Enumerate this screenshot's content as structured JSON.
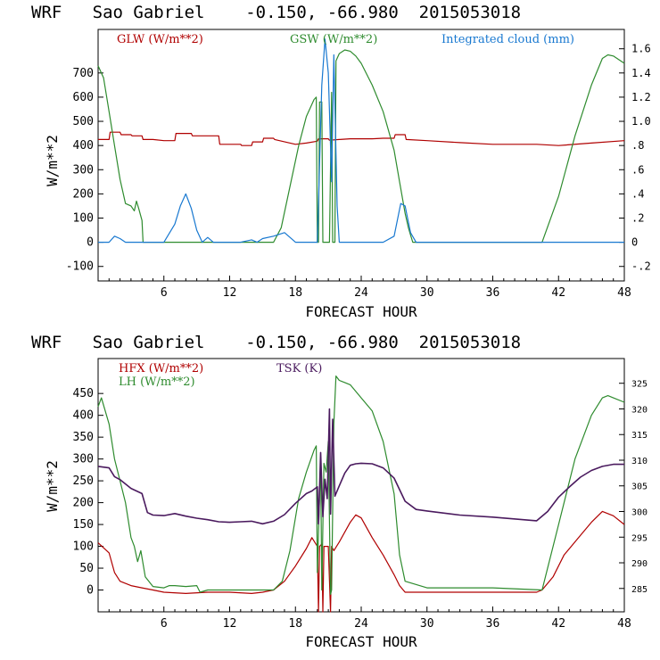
{
  "chart_data": [
    {
      "type": "line",
      "title": "WRF   Sao Gabriel    -0.150, -66.980  2015053018",
      "xlabel": "FORECAST HOUR",
      "ylabel": "W/m**2",
      "xlim": [
        0,
        48
      ],
      "ylim": [
        -160,
        880
      ],
      "y2lim": [
        -0.32,
        1.76
      ],
      "xticks": [
        6,
        12,
        18,
        24,
        30,
        36,
        42,
        48
      ],
      "yticks": [
        -100,
        0,
        100,
        200,
        300,
        400,
        500,
        600,
        700
      ],
      "y2ticks": [
        -0.2,
        0,
        0.2,
        0.4,
        0.6,
        0.8,
        1.0,
        1.2,
        1.4,
        1.6
      ],
      "y2tick_labels": [
        "-.2",
        "0",
        ".2",
        ".4",
        ".6",
        ".8",
        "1.0",
        "1.2",
        "1.4",
        "1.6"
      ],
      "series": [
        {
          "name": "GLW (W/m**2)",
          "color": "#b00000",
          "axis": "left",
          "x": [
            0,
            1,
            1.1,
            2,
            2.1,
            3,
            3.1,
            4,
            4.1,
            5,
            6,
            7,
            7.1,
            8.5,
            8.6,
            10,
            11,
            11.1,
            13,
            13.1,
            14,
            14.1,
            15,
            15.1,
            16,
            16.1,
            18,
            19,
            20,
            20.1,
            21,
            21.1,
            22,
            23,
            25,
            26,
            27,
            27.1,
            28,
            28.1,
            30,
            33,
            36,
            40,
            42,
            45,
            48
          ],
          "values": [
            425,
            425,
            455,
            455,
            445,
            445,
            440,
            440,
            425,
            425,
            420,
            420,
            450,
            450,
            440,
            440,
            440,
            405,
            405,
            400,
            400,
            415,
            415,
            430,
            430,
            425,
            405,
            410,
            418,
            428,
            428,
            422,
            425,
            428,
            428,
            430,
            430,
            445,
            445,
            425,
            420,
            412,
            405,
            405,
            400,
            410,
            420
          ]
        },
        {
          "name": "GSW (W/m**2)",
          "color": "#2e8b2e",
          "axis": "left",
          "x": [
            0,
            0.5,
            1,
            1.5,
            2,
            2.5,
            3,
            3.3,
            3.5,
            3.7,
            4,
            4.1,
            16,
            16.7,
            17.5,
            18.3,
            19,
            19.7,
            19.9,
            20,
            20.1,
            20.2,
            20.4,
            20.5,
            20.6,
            21,
            21.1,
            21.3,
            21.4,
            21.6,
            21.7,
            22,
            22.5,
            23,
            23.5,
            24,
            25,
            26,
            27,
            27.5,
            28,
            28.3,
            28.5,
            28.7,
            40.5,
            42,
            43.5,
            45,
            46,
            46.5,
            47,
            48
          ],
          "values": [
            730,
            680,
            540,
            400,
            260,
            160,
            150,
            130,
            170,
            140,
            90,
            0,
            0,
            60,
            230,
            400,
            520,
            590,
            600,
            0,
            0,
            580,
            580,
            0,
            0,
            0,
            0,
            620,
            0,
            0,
            750,
            780,
            795,
            790,
            770,
            740,
            650,
            540,
            380,
            250,
            120,
            60,
            30,
            0,
            0,
            190,
            440,
            650,
            760,
            775,
            770,
            740
          ]
        },
        {
          "name": "Integrated cloud (mm)",
          "color": "#1878d0",
          "axis": "right",
          "x": [
            0,
            1,
            1.5,
            2,
            2.5,
            3,
            6,
            7,
            7.5,
            8,
            8.5,
            9,
            9.5,
            10,
            10.5,
            11,
            13,
            14,
            14.5,
            15,
            16,
            17,
            18,
            20,
            20.4,
            20.7,
            21,
            21.3,
            21.5,
            21.8,
            22,
            26,
            27,
            27.6,
            28,
            28.5,
            29,
            48
          ],
          "values": [
            0,
            0,
            0.05,
            0.03,
            0,
            0,
            0,
            0.15,
            0.3,
            0.4,
            0.28,
            0.1,
            0,
            0.04,
            0,
            0,
            0,
            0.02,
            0,
            0.03,
            0.05,
            0.08,
            0,
            0,
            1.3,
            1.68,
            1.4,
            0.5,
            1.55,
            0.3,
            0,
            0,
            0.05,
            0.32,
            0.3,
            0.08,
            0,
            0
          ]
        }
      ]
    },
    {
      "type": "line",
      "title": "WRF   Sao Gabriel    -0.150, -66.980  2015053018",
      "xlabel": "FORECAST HOUR",
      "ylabel": "W/m**2",
      "xlim": [
        0,
        48
      ],
      "ylim": [
        -50,
        530
      ],
      "y2lim": [
        280.44,
        329.82
      ],
      "xticks": [
        6,
        12,
        18,
        24,
        30,
        36,
        42,
        48
      ],
      "yticks": [
        0,
        50,
        100,
        150,
        200,
        250,
        300,
        350,
        400,
        450
      ],
      "y2ticks": [
        285,
        290,
        295,
        300,
        305,
        310,
        315,
        320,
        325
      ],
      "y2tick_labels": [
        "285",
        "290",
        "295",
        "300",
        "305",
        "310",
        "315",
        "320",
        "325"
      ],
      "series": [
        {
          "name": "HFX (W/m**2)",
          "color": "#b00000",
          "axis": "left",
          "x": [
            0,
            1,
            1.5,
            2,
            3,
            4,
            5,
            6,
            8,
            10,
            12,
            14,
            15,
            16,
            17,
            18,
            19,
            19.5,
            20,
            20.1,
            20.2,
            20.4,
            20.5,
            20.6,
            21,
            21.2,
            21.3,
            21.5,
            22,
            23,
            23.5,
            24,
            25,
            26,
            27,
            27.5,
            28,
            30,
            36,
            40,
            40.5,
            41.5,
            42.5,
            44,
            45,
            46,
            47,
            48
          ],
          "values": [
            108,
            85,
            40,
            20,
            10,
            5,
            0,
            -5,
            -8,
            -5,
            -5,
            -8,
            -5,
            0,
            20,
            55,
            95,
            120,
            100,
            -50,
            100,
            105,
            -50,
            100,
            100,
            -50,
            100,
            90,
            110,
            155,
            172,
            165,
            120,
            80,
            35,
            10,
            -5,
            -5,
            -5,
            -5,
            0,
            30,
            80,
            125,
            155,
            180,
            170,
            150
          ]
        },
        {
          "name": "LH (W/m**2)",
          "color": "#2e8b2e",
          "axis": "left",
          "x": [
            0,
            0.3,
            1,
            1.5,
            2,
            2.5,
            3,
            3.3,
            3.6,
            3.9,
            4.3,
            5,
            6,
            6.5,
            7,
            8,
            9,
            9.3,
            10,
            12,
            16,
            16.8,
            17.5,
            18.3,
            19,
            19.7,
            19.9,
            20,
            20.3,
            20.4,
            20.6,
            20.8,
            21,
            21.2,
            21.3,
            21.5,
            21.7,
            22,
            22.5,
            23,
            24,
            25,
            26,
            27,
            27.5,
            28,
            30,
            36,
            40.5,
            42,
            43.5,
            45,
            46,
            46.5,
            47,
            48
          ],
          "values": [
            420,
            440,
            380,
            300,
            250,
            200,
            120,
            100,
            65,
            90,
            30,
            8,
            5,
            10,
            10,
            8,
            10,
            -5,
            0,
            0,
            0,
            20,
            90,
            210,
            270,
            320,
            330,
            40,
            300,
            0,
            290,
            270,
            340,
            -10,
            0,
            380,
            490,
            480,
            475,
            470,
            440,
            410,
            340,
            220,
            80,
            20,
            5,
            5,
            0,
            150,
            300,
            400,
            440,
            445,
            440,
            430
          ]
        },
        {
          "name": "TSK (K)",
          "color": "#4a1a5e",
          "axis": "right",
          "x": [
            0,
            1,
            1.5,
            2,
            3,
            4,
            4.5,
            5,
            6,
            7,
            8,
            9,
            10,
            11,
            12,
            13,
            14,
            15,
            16,
            17,
            18,
            19,
            19.5,
            20,
            20.1,
            20.3,
            20.5,
            20.7,
            20.9,
            21.1,
            21.2,
            21.4,
            21.6,
            22,
            22.5,
            23,
            23.5,
            24,
            25,
            26,
            27,
            28,
            29,
            30,
            33,
            36,
            40,
            41,
            42,
            43,
            44,
            45,
            46,
            47,
            48
          ],
          "values": [
            308.8,
            308.5,
            306.8,
            306.2,
            304.5,
            303.5,
            299.8,
            299.3,
            299.2,
            299.6,
            299.1,
            298.7,
            298.4,
            298.0,
            297.9,
            298.0,
            298.1,
            297.6,
            298.1,
            299.4,
            301.6,
            303.5,
            304.0,
            304.8,
            297.6,
            311.5,
            299.0,
            306.3,
            302.5,
            320.0,
            299.5,
            318.0,
            303.0,
            305.0,
            307.5,
            309.0,
            309.3,
            309.4,
            309.3,
            308.5,
            306.5,
            302.0,
            300.4,
            300.1,
            299.3,
            298.9,
            298.2,
            300.0,
            302.8,
            304.8,
            306.7,
            308.0,
            308.8,
            309.2,
            309.2
          ]
        }
      ]
    }
  ]
}
